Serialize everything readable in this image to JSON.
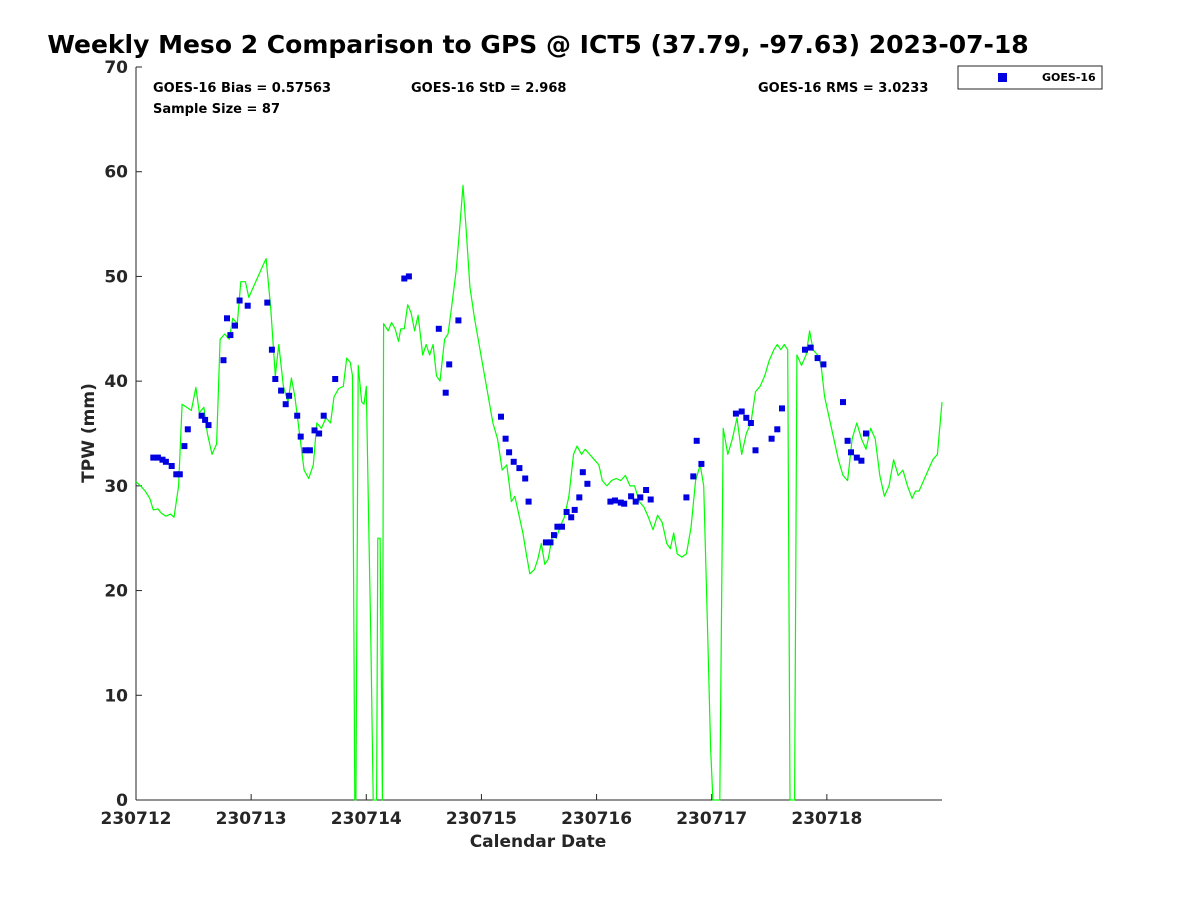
{
  "chart_data": {
    "type": "line+scatter",
    "title": "Weekly Meso 2 Comparison to GPS @ ICT5 (37.79, -97.63) 2023-07-18",
    "xlabel": "Calendar Date",
    "ylabel": "TPW (mm)",
    "xlim": [
      0,
      7
    ],
    "ylim": [
      0,
      70
    ],
    "xticks": [
      0,
      1,
      2,
      3,
      4,
      5,
      6
    ],
    "xtick_labels": [
      "230712",
      "230713",
      "230714",
      "230715",
      "230716",
      "230717",
      "230718"
    ],
    "yticks": [
      0,
      10,
      20,
      30,
      40,
      50,
      60,
      70
    ],
    "ytick_labels": [
      "0",
      "10",
      "20",
      "30",
      "40",
      "50",
      "60",
      "70"
    ],
    "stats": {
      "bias": "GOES-16 Bias = 0.57563",
      "std": "GOES-16 StD = 2.968",
      "rms": "GOES-16 RMS = 3.0233",
      "sample": "Sample Size = 87"
    },
    "legend": {
      "label": "GOES-16",
      "location": "outside top-right"
    },
    "series": [
      {
        "name": "GPS",
        "kind": "line",
        "color": "#00ff00",
        "points": [
          [
            0.0,
            30.4
          ],
          [
            0.04,
            30.0
          ],
          [
            0.08,
            29.5
          ],
          [
            0.12,
            28.8
          ],
          [
            0.15,
            27.7
          ],
          [
            0.19,
            27.8
          ],
          [
            0.22,
            27.4
          ],
          [
            0.26,
            27.1
          ],
          [
            0.3,
            27.3
          ],
          [
            0.33,
            27.0
          ],
          [
            0.37,
            30.0
          ],
          [
            0.4,
            37.8
          ],
          [
            0.44,
            37.5
          ],
          [
            0.48,
            37.2
          ],
          [
            0.52,
            39.4
          ],
          [
            0.55,
            37.0
          ],
          [
            0.59,
            37.5
          ],
          [
            0.62,
            35.0
          ],
          [
            0.66,
            33.0
          ],
          [
            0.7,
            34.0
          ],
          [
            0.73,
            44.0
          ],
          [
            0.77,
            44.5
          ],
          [
            0.81,
            44.0
          ],
          [
            0.84,
            46.0
          ],
          [
            0.88,
            45.5
          ],
          [
            0.91,
            49.5
          ],
          [
            0.95,
            49.5
          ],
          [
            0.98,
            48.0
          ],
          [
            1.02,
            49.0
          ],
          [
            1.06,
            50.0
          ],
          [
            1.1,
            51.0
          ],
          [
            1.13,
            51.7
          ],
          [
            1.17,
            47.0
          ],
          [
            1.21,
            40.5
          ],
          [
            1.24,
            43.5
          ],
          [
            1.28,
            39.5
          ],
          [
            1.32,
            38.0
          ],
          [
            1.35,
            40.3
          ],
          [
            1.38,
            38.5
          ],
          [
            1.42,
            35.0
          ],
          [
            1.46,
            31.5
          ],
          [
            1.5,
            30.7
          ],
          [
            1.54,
            32.0
          ],
          [
            1.57,
            36.0
          ],
          [
            1.61,
            35.5
          ],
          [
            1.65,
            36.5
          ],
          [
            1.69,
            36.0
          ],
          [
            1.72,
            38.5
          ],
          [
            1.76,
            39.3
          ],
          [
            1.8,
            39.5
          ],
          [
            1.83,
            42.2
          ],
          [
            1.86,
            41.8
          ],
          [
            1.88,
            40.5
          ],
          [
            1.9,
            0.0
          ],
          [
            1.91,
            0.0
          ],
          [
            1.93,
            41.5
          ],
          [
            1.96,
            38.0
          ],
          [
            1.98,
            37.8
          ],
          [
            2.0,
            39.5
          ],
          [
            2.02,
            27.0
          ],
          [
            2.04,
            15.0
          ],
          [
            2.06,
            0.0
          ],
          [
            2.09,
            0.0
          ],
          [
            2.1,
            25.0
          ],
          [
            2.12,
            25.0
          ],
          [
            2.14,
            0.0
          ],
          [
            2.15,
            45.5
          ],
          [
            2.19,
            44.8
          ],
          [
            2.22,
            45.6
          ],
          [
            2.25,
            45.0
          ],
          [
            2.28,
            43.8
          ],
          [
            2.3,
            45.0
          ],
          [
            2.33,
            45.0
          ],
          [
            2.36,
            47.3
          ],
          [
            2.39,
            46.5
          ],
          [
            2.42,
            44.8
          ],
          [
            2.45,
            46.3
          ],
          [
            2.49,
            42.5
          ],
          [
            2.52,
            43.5
          ],
          [
            2.55,
            42.5
          ],
          [
            2.58,
            43.5
          ],
          [
            2.61,
            40.5
          ],
          [
            2.64,
            40.0
          ],
          [
            2.68,
            44.0
          ],
          [
            2.71,
            44.5
          ],
          [
            2.74,
            47.0
          ],
          [
            2.78,
            50.5
          ],
          [
            2.81,
            54.5
          ],
          [
            2.84,
            58.7
          ],
          [
            2.87,
            54.0
          ],
          [
            2.9,
            49.0
          ],
          [
            2.94,
            46.0
          ],
          [
            2.98,
            43.5
          ],
          [
            3.02,
            41.0
          ],
          [
            3.06,
            38.5
          ],
          [
            3.1,
            36.0
          ],
          [
            3.14,
            34.5
          ],
          [
            3.18,
            31.5
          ],
          [
            3.22,
            32.0
          ],
          [
            3.26,
            28.5
          ],
          [
            3.29,
            29.0
          ],
          [
            3.32,
            27.5
          ],
          [
            3.36,
            25.5
          ],
          [
            3.39,
            23.5
          ],
          [
            3.42,
            21.6
          ],
          [
            3.46,
            22.0
          ],
          [
            3.49,
            23.0
          ],
          [
            3.52,
            24.5
          ],
          [
            3.55,
            22.5
          ],
          [
            3.58,
            23.0
          ],
          [
            3.62,
            25.5
          ],
          [
            3.65,
            25.0
          ],
          [
            3.68,
            26.0
          ],
          [
            3.72,
            27.0
          ],
          [
            3.76,
            29.0
          ],
          [
            3.8,
            33.0
          ],
          [
            3.83,
            33.8
          ],
          [
            3.87,
            33.0
          ],
          [
            3.9,
            33.5
          ],
          [
            3.94,
            33.0
          ],
          [
            3.98,
            32.5
          ],
          [
            4.02,
            32.0
          ],
          [
            4.05,
            30.5
          ],
          [
            4.09,
            30.0
          ],
          [
            4.13,
            30.5
          ],
          [
            4.17,
            30.7
          ],
          [
            4.21,
            30.5
          ],
          [
            4.25,
            31.0
          ],
          [
            4.29,
            30.0
          ],
          [
            4.33,
            30.0
          ],
          [
            4.37,
            28.5
          ],
          [
            4.41,
            28.0
          ],
          [
            4.45,
            27.0
          ],
          [
            4.49,
            25.8
          ],
          [
            4.53,
            27.2
          ],
          [
            4.57,
            26.5
          ],
          [
            4.61,
            24.5
          ],
          [
            4.64,
            24.0
          ],
          [
            4.67,
            25.5
          ],
          [
            4.7,
            23.5
          ],
          [
            4.74,
            23.2
          ],
          [
            4.78,
            23.5
          ],
          [
            4.82,
            26.0
          ],
          [
            4.86,
            30.5
          ],
          [
            4.9,
            32.0
          ],
          [
            4.93,
            30.0
          ],
          [
            4.96,
            18.0
          ],
          [
            4.99,
            5.0
          ],
          [
            5.01,
            0.0
          ],
          [
            5.05,
            0.0
          ],
          [
            5.07,
            0.0
          ],
          [
            5.1,
            35.5
          ],
          [
            5.14,
            33.0
          ],
          [
            5.18,
            34.5
          ],
          [
            5.22,
            36.5
          ],
          [
            5.26,
            33.0
          ],
          [
            5.3,
            35.0
          ],
          [
            5.34,
            36.0
          ],
          [
            5.38,
            39.0
          ],
          [
            5.42,
            39.5
          ],
          [
            5.46,
            40.5
          ],
          [
            5.5,
            42.0
          ],
          [
            5.54,
            43.0
          ],
          [
            5.57,
            43.5
          ],
          [
            5.6,
            43.0
          ],
          [
            5.63,
            43.5
          ],
          [
            5.66,
            43.0
          ],
          [
            5.68,
            0.0
          ],
          [
            5.72,
            0.0
          ],
          [
            5.74,
            42.5
          ],
          [
            5.78,
            41.5
          ],
          [
            5.82,
            42.5
          ],
          [
            5.85,
            44.8
          ],
          [
            5.88,
            43.0
          ],
          [
            5.92,
            42.5
          ],
          [
            5.95,
            41.5
          ],
          [
            5.98,
            38.5
          ],
          [
            6.02,
            36.5
          ],
          [
            6.06,
            34.5
          ],
          [
            6.1,
            32.5
          ],
          [
            6.14,
            31.0
          ],
          [
            6.18,
            30.5
          ],
          [
            6.22,
            34.5
          ],
          [
            6.26,
            36.0
          ],
          [
            6.3,
            34.5
          ],
          [
            6.34,
            33.5
          ],
          [
            6.38,
            35.5
          ],
          [
            6.42,
            34.5
          ],
          [
            6.46,
            31.0
          ],
          [
            6.5,
            29.0
          ],
          [
            6.54,
            30.0
          ],
          [
            6.58,
            32.5
          ],
          [
            6.62,
            31.0
          ],
          [
            6.66,
            31.5
          ],
          [
            6.7,
            30.0
          ],
          [
            6.74,
            28.8
          ],
          [
            6.77,
            29.5
          ],
          [
            6.8,
            29.5
          ],
          [
            6.84,
            30.5
          ],
          [
            6.88,
            31.5
          ],
          [
            6.92,
            32.5
          ],
          [
            6.96,
            33.0
          ],
          [
            6.98,
            35.5
          ],
          [
            7.0,
            38.0
          ]
        ]
      },
      {
        "name": "GOES-16",
        "kind": "scatter",
        "color": "#0000e0",
        "marker": "square",
        "points": [
          [
            0.15,
            32.7
          ],
          [
            0.19,
            32.7
          ],
          [
            0.23,
            32.5
          ],
          [
            0.26,
            32.3
          ],
          [
            0.31,
            31.9
          ],
          [
            0.35,
            31.1
          ],
          [
            0.38,
            31.1
          ],
          [
            0.42,
            33.8
          ],
          [
            0.45,
            35.4
          ],
          [
            0.57,
            36.7
          ],
          [
            0.6,
            36.3
          ],
          [
            0.63,
            35.8
          ],
          [
            0.76,
            42.0
          ],
          [
            0.79,
            46.0
          ],
          [
            0.82,
            44.4
          ],
          [
            0.86,
            45.3
          ],
          [
            0.9,
            47.7
          ],
          [
            0.97,
            47.2
          ],
          [
            1.14,
            47.5
          ],
          [
            1.18,
            43.0
          ],
          [
            1.21,
            40.2
          ],
          [
            1.26,
            39.1
          ],
          [
            1.3,
            37.8
          ],
          [
            1.33,
            38.6
          ],
          [
            1.4,
            36.7
          ],
          [
            1.43,
            34.7
          ],
          [
            1.47,
            33.4
          ],
          [
            1.51,
            33.4
          ],
          [
            1.55,
            35.3
          ],
          [
            1.59,
            35.0
          ],
          [
            1.63,
            36.7
          ],
          [
            1.73,
            40.2
          ],
          [
            2.33,
            49.8
          ],
          [
            2.37,
            50.0
          ],
          [
            2.63,
            45.0
          ],
          [
            2.69,
            38.9
          ],
          [
            2.72,
            41.6
          ],
          [
            2.8,
            45.8
          ],
          [
            3.17,
            36.6
          ],
          [
            3.21,
            34.5
          ],
          [
            3.24,
            33.2
          ],
          [
            3.28,
            32.3
          ],
          [
            3.33,
            31.7
          ],
          [
            3.38,
            30.7
          ],
          [
            3.41,
            28.5
          ],
          [
            3.56,
            24.6
          ],
          [
            3.6,
            24.6
          ],
          [
            3.63,
            25.3
          ],
          [
            3.66,
            26.1
          ],
          [
            3.7,
            26.1
          ],
          [
            3.74,
            27.5
          ],
          [
            3.78,
            27.0
          ],
          [
            3.81,
            27.7
          ],
          [
            3.85,
            28.9
          ],
          [
            3.88,
            31.3
          ],
          [
            3.92,
            30.2
          ],
          [
            4.12,
            28.5
          ],
          [
            4.16,
            28.6
          ],
          [
            4.21,
            28.4
          ],
          [
            4.24,
            28.3
          ],
          [
            4.3,
            29.0
          ],
          [
            4.34,
            28.5
          ],
          [
            4.38,
            28.9
          ],
          [
            4.43,
            29.6
          ],
          [
            4.47,
            28.7
          ],
          [
            4.78,
            28.9
          ],
          [
            4.84,
            30.9
          ],
          [
            4.87,
            34.3
          ],
          [
            4.91,
            32.1
          ],
          [
            5.21,
            36.9
          ],
          [
            5.26,
            37.1
          ],
          [
            5.3,
            36.5
          ],
          [
            5.34,
            36.0
          ],
          [
            5.38,
            33.4
          ],
          [
            5.52,
            34.5
          ],
          [
            5.57,
            35.4
          ],
          [
            5.61,
            37.4
          ],
          [
            5.81,
            43.0
          ],
          [
            5.86,
            43.2
          ],
          [
            5.92,
            42.2
          ],
          [
            5.97,
            41.6
          ],
          [
            6.14,
            38.0
          ],
          [
            6.18,
            34.3
          ],
          [
            6.21,
            33.2
          ],
          [
            6.26,
            32.7
          ],
          [
            6.3,
            32.4
          ],
          [
            6.34,
            35.0
          ]
        ]
      }
    ]
  }
}
